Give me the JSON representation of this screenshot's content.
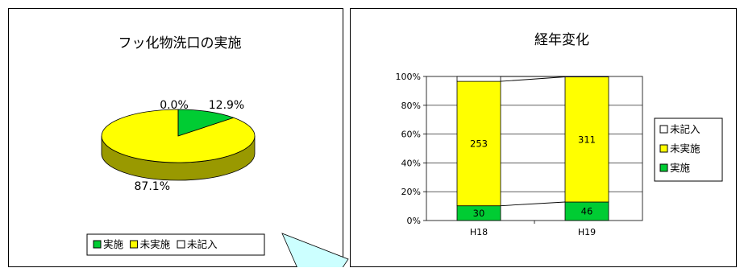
{
  "chart_data": [
    {
      "type": "pie",
      "title": "フッ化物洗口の実施",
      "categories": [
        "実施",
        "未実施",
        "未記入"
      ],
      "values": [
        12.9,
        87.1,
        0.0
      ],
      "value_labels": [
        "12.9%",
        "87.1%",
        "0.0%"
      ],
      "colors": [
        "#00cc33",
        "#ffff00",
        "#ffffff"
      ],
      "style": "3d",
      "legend": {
        "position": "bottom",
        "items": [
          "実施",
          "未実施",
          "未記入"
        ]
      }
    },
    {
      "type": "bar",
      "stacked": "percent",
      "title": "経年変化",
      "categories": [
        "H18",
        "H19"
      ],
      "series": [
        {
          "name": "実施",
          "values": [
            30,
            46
          ],
          "color": "#00cc33"
        },
        {
          "name": "未実施",
          "values": [
            253,
            311
          ],
          "color": "#ffff00"
        },
        {
          "name": "未記入",
          "values": [
            10,
            1
          ],
          "color": "#ffffff"
        }
      ],
      "data_labels": [
        [
          "30",
          "253"
        ],
        [
          "46",
          "311"
        ]
      ],
      "ylim": [
        0,
        100
      ],
      "yticks": [
        "0%",
        "20%",
        "40%",
        "60%",
        "80%",
        "100%"
      ],
      "grid": true,
      "series_lines": true,
      "legend": {
        "position": "right",
        "items": [
          "未記入",
          "未実施",
          "実施"
        ]
      }
    }
  ]
}
